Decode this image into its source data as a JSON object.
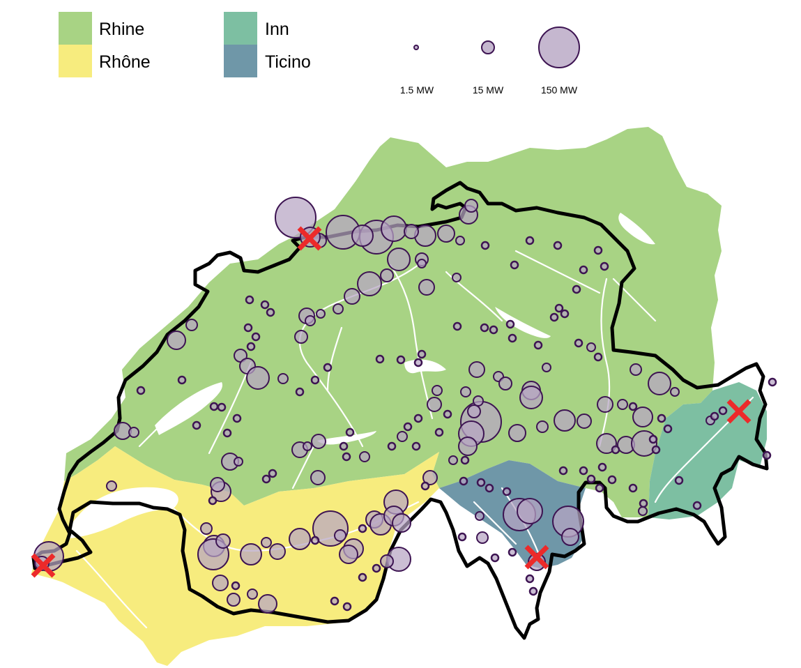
{
  "legend": {
    "basins": [
      {
        "name": "Rhine",
        "color": "#a8d384"
      },
      {
        "name": "Rhône",
        "color": "#f7ec7e"
      },
      {
        "name": "Inn",
        "color": "#7dbfa2"
      },
      {
        "name": "Ticino",
        "color": "#6f97a8"
      }
    ],
    "sizes": [
      {
        "label": "1.5 MW",
        "mw": 1.5
      },
      {
        "label": "15 MW",
        "mw": 15
      },
      {
        "label": "150 MW",
        "mw": 150
      }
    ]
  },
  "marker_style": {
    "fill": "#b7a5c3",
    "stroke": "#3d1452",
    "cross_color": "#ec2a2a"
  },
  "border_color": "#000000",
  "river_color": "#ffffff",
  "lake_color": "#ffffff"
}
